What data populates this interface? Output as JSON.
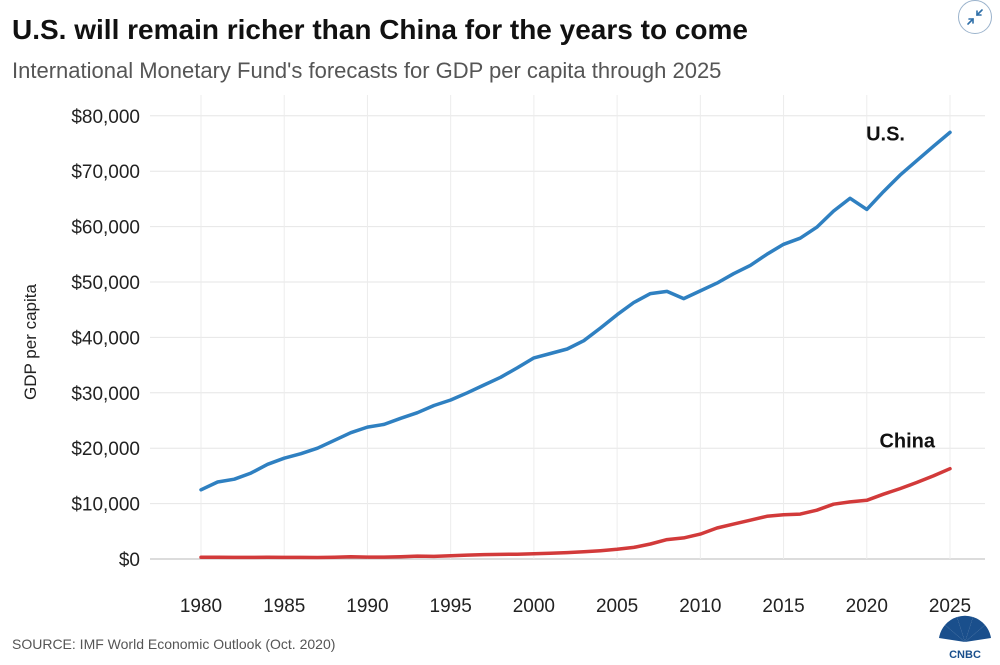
{
  "header": {
    "title": "U.S. will remain richer than China for the years to come",
    "subtitle": "International Monetary Fund's forecasts for GDP per capita through 2025"
  },
  "footer": {
    "source": "SOURCE: IMF World Economic Outlook (Oct. 2020)",
    "logo_text": "CNBC"
  },
  "icons": {
    "expand": "collapse-arrows-icon",
    "logo": "cnbc-peacock-icon"
  },
  "chart_data": {
    "type": "line",
    "title": "U.S. will remain richer than China for the years to come",
    "subtitle": "International Monetary Fund's forecasts for GDP per capita through 2025",
    "xlabel": "",
    "ylabel": "GDP per capita",
    "xlim": [
      1980,
      2025
    ],
    "ylim": [
      0,
      80000
    ],
    "x_ticks": [
      1980,
      1985,
      1990,
      1995,
      2000,
      2005,
      2010,
      2015,
      2020,
      2025
    ],
    "y_ticks": [
      0,
      10000,
      20000,
      30000,
      40000,
      50000,
      60000,
      70000,
      80000
    ],
    "y_tick_labels": [
      "$0",
      "$10,000",
      "$20,000",
      "$30,000",
      "$40,000",
      "$50,000",
      "$60,000",
      "$70,000",
      "$80,000"
    ],
    "grid": true,
    "x": [
      1980,
      1981,
      1982,
      1983,
      1984,
      1985,
      1986,
      1987,
      1988,
      1989,
      1990,
      1991,
      1992,
      1993,
      1994,
      1995,
      1996,
      1997,
      1998,
      1999,
      2000,
      2001,
      2002,
      2003,
      2004,
      2005,
      2006,
      2007,
      2008,
      2009,
      2010,
      2011,
      2012,
      2013,
      2014,
      2015,
      2016,
      2017,
      2018,
      2019,
      2020,
      2021,
      2022,
      2023,
      2024,
      2025
    ],
    "series": [
      {
        "name": "U.S.",
        "color": "#2f80c1",
        "values": [
          12500,
          13900,
          14400,
          15500,
          17100,
          18200,
          19000,
          20000,
          21400,
          22800,
          23800,
          24300,
          25400,
          26400,
          27700,
          28700,
          30000,
          31400,
          32800,
          34500,
          36300,
          37100,
          37900,
          39400,
          41700,
          44100,
          46300,
          47900,
          48300,
          47000,
          48400,
          49800,
          51500,
          53000,
          55000,
          56800,
          57900,
          59900,
          62800,
          65100,
          63100,
          66300,
          69300,
          71900,
          74500,
          77000
        ],
        "label_year": 2025
      },
      {
        "name": "China",
        "color": "#d23a3a",
        "values": [
          300,
          300,
          280,
          290,
          300,
          290,
          280,
          270,
          310,
          400,
          350,
          350,
          420,
          520,
          470,
          600,
          700,
          800,
          830,
          870,
          960,
          1050,
          1150,
          1300,
          1500,
          1750,
          2100,
          2700,
          3500,
          3800,
          4500,
          5600,
          6300,
          7000,
          7700,
          8000,
          8100,
          8800,
          9900,
          10300,
          10600,
          11700,
          12700,
          13800,
          15000,
          16300
        ],
        "label_year": 2025
      }
    ]
  }
}
